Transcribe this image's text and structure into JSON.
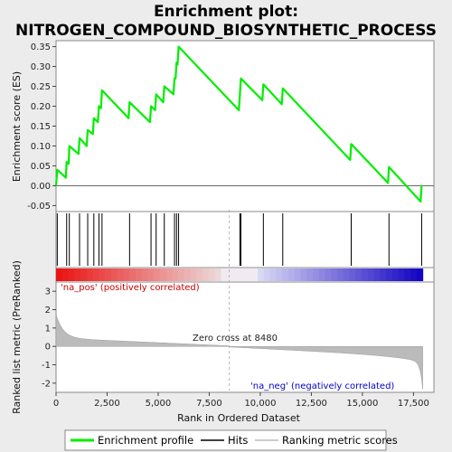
{
  "chart_data": {
    "type": "line",
    "title_line1": "Enrichment plot:",
    "title_line2": "NITROGEN_COMPOUND_BIOSYNTHETIC_PROCESS",
    "ylabel_top": "Enrichment score (ES)",
    "ylabel_bottom": "Ranked list metric (PreRanked)",
    "xlabel": "Rank in Ordered Dataset",
    "xlim": [
      0,
      18500
    ],
    "x_ticks": [
      0,
      2500,
      5000,
      7500,
      10000,
      12500,
      15000,
      17500
    ],
    "x_tick_labels": [
      "0",
      "2,500",
      "5,000",
      "7,500",
      "10,000",
      "12,500",
      "15,000",
      "17,500"
    ],
    "es_ylim": [
      -0.065,
      0.365
    ],
    "es_ticks": [
      -0.05,
      0.0,
      0.05,
      0.1,
      0.15,
      0.2,
      0.25,
      0.3,
      0.35
    ],
    "es_tick_labels": [
      "-0.05",
      "0.00",
      "0.05",
      "0.10",
      "0.15",
      "0.20",
      "0.25",
      "0.30",
      "0.35"
    ],
    "metric_ylim": [
      -2.5,
      3.5
    ],
    "metric_ticks": [
      -2,
      -1,
      0,
      1,
      2,
      3
    ],
    "metric_tick_labels": [
      "-2",
      "-1",
      "0",
      "1",
      "2",
      "3"
    ],
    "hits": [
      60,
      520,
      650,
      1150,
      1550,
      1850,
      2100,
      2250,
      3600,
      4650,
      4900,
      5300,
      5800,
      5900,
      6000,
      9000,
      9050,
      10150,
      11100,
      14450,
      16300,
      17900
    ],
    "es_points": [
      [
        0,
        0.0
      ],
      [
        60,
        0.04
      ],
      [
        480,
        0.02
      ],
      [
        520,
        0.06
      ],
      [
        620,
        0.055
      ],
      [
        650,
        0.1
      ],
      [
        1100,
        0.08
      ],
      [
        1150,
        0.12
      ],
      [
        1500,
        0.1
      ],
      [
        1550,
        0.14
      ],
      [
        1800,
        0.13
      ],
      [
        1850,
        0.17
      ],
      [
        2050,
        0.16
      ],
      [
        2100,
        0.2
      ],
      [
        2200,
        0.195
      ],
      [
        2250,
        0.24
      ],
      [
        3550,
        0.17
      ],
      [
        3600,
        0.21
      ],
      [
        4600,
        0.16
      ],
      [
        4650,
        0.2
      ],
      [
        4850,
        0.19
      ],
      [
        4900,
        0.23
      ],
      [
        5250,
        0.21
      ],
      [
        5300,
        0.25
      ],
      [
        5750,
        0.23
      ],
      [
        5800,
        0.27
      ],
      [
        5850,
        0.27
      ],
      [
        5900,
        0.31
      ],
      [
        5950,
        0.305
      ],
      [
        6000,
        0.35
      ],
      [
        8950,
        0.19
      ],
      [
        9000,
        0.23
      ],
      [
        9050,
        0.27
      ],
      [
        10100,
        0.215
      ],
      [
        10150,
        0.255
      ],
      [
        11050,
        0.205
      ],
      [
        11100,
        0.245
      ],
      [
        14400,
        0.065
      ],
      [
        14450,
        0.105
      ],
      [
        16250,
        0.007
      ],
      [
        16300,
        0.047
      ],
      [
        17850,
        -0.04
      ],
      [
        17900,
        0.002
      ]
    ],
    "zero_cross": 8480,
    "zero_cross_label": "Zero cross at 8480",
    "pos_label": "'na_pos' (positively correlated)",
    "neg_label": "'na_neg' (negatively correlated)",
    "total_ranks": 17950,
    "legend": [
      "Enrichment profile",
      "Hits",
      "Ranking metric scores"
    ],
    "colors": {
      "es_line": "#00ee00",
      "pos_text": "#cc0000",
      "neg_text": "#0000cc",
      "metric_fill": "#bbbbbb"
    }
  }
}
